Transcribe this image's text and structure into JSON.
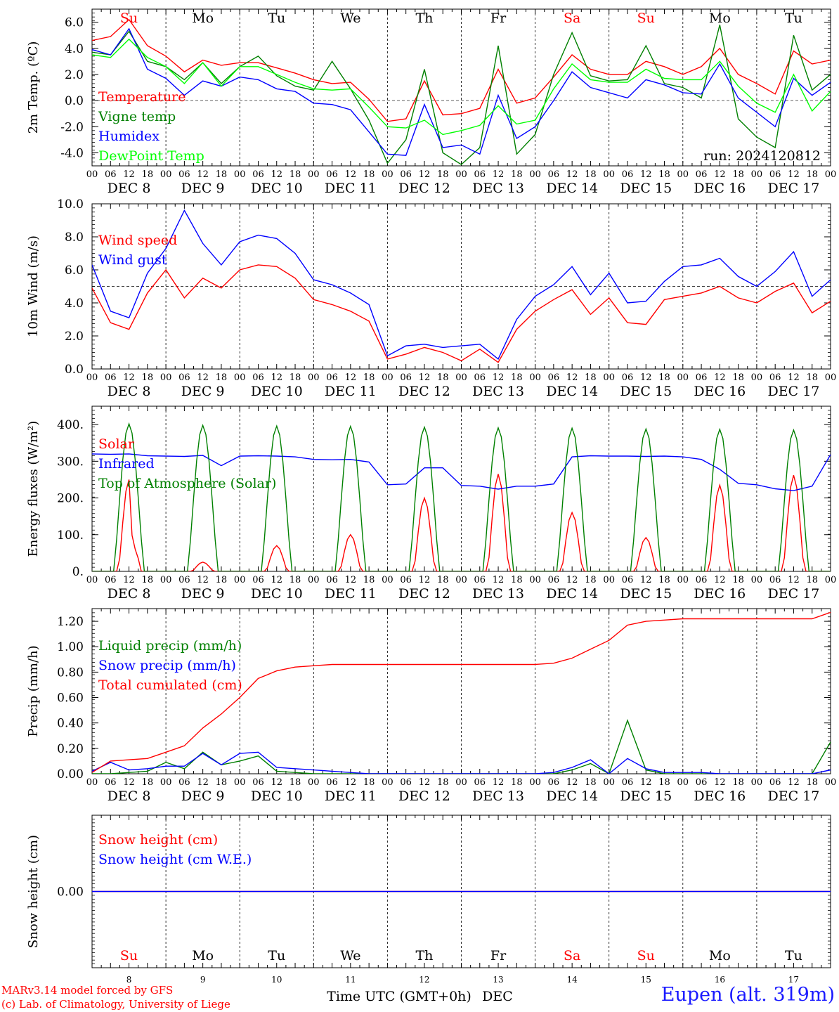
{
  "colors": {
    "red": "#ff0000",
    "green": "#008000",
    "blue": "#0000ff",
    "lightgreen": "#00ff00"
  },
  "days": [
    "Su",
    "Mo",
    "Tu",
    "We",
    "Th",
    "Fr",
    "Sa",
    "Su",
    "Mo",
    "Tu"
  ],
  "weekend_flags": [
    true,
    false,
    false,
    false,
    false,
    false,
    true,
    true,
    false,
    false
  ],
  "date_labels": [
    "DEC  8",
    "DEC  9",
    "DEC 10",
    "DEC 11",
    "DEC 12",
    "DEC 13",
    "DEC 14",
    "DEC 15",
    "DEC 16",
    "DEC 17"
  ],
  "bottom_day_numbers": [
    "8",
    "9",
    "10",
    "11",
    "12",
    "13",
    "14",
    "15",
    "16",
    "17"
  ],
  "hour_ticks": [
    "00",
    "06",
    "12",
    "18"
  ],
  "run_label": "run: 2024120812",
  "xlabel": "Time UTC (GMT+0h)",
  "xlabel_month": "DEC",
  "credit_line1": "MARv3.14 model forced by GFS",
  "credit_line2": "(c) Lab. of Climatology, University of Liege",
  "location": "Eupen (alt. 319m)",
  "chart_data": [
    {
      "type": "line",
      "ylabel": "2m Temp. (ºC)",
      "ylim": [
        -5,
        7
      ],
      "yticks": [
        -4,
        -2,
        0,
        2,
        4,
        6
      ],
      "ytick_labels": [
        "-4.0",
        "-2.0",
        "0.0",
        "2.0",
        "4.0",
        "6.0"
      ],
      "ref_line": 0,
      "x_days": [
        0,
        0.25,
        0.5,
        0.75,
        1,
        1.25,
        1.5,
        1.75,
        2,
        2.25,
        2.5,
        2.75,
        3,
        3.25,
        3.5,
        3.75,
        4,
        4.25,
        4.5,
        4.75,
        5,
        5.25,
        5.5,
        5.75,
        6,
        6.25,
        6.5,
        6.75,
        7,
        7.25,
        7.5,
        7.75,
        8,
        8.25,
        8.5,
        8.75,
        9,
        9.25,
        9.5,
        9.75,
        10
      ],
      "series": [
        {
          "name": "Temperature",
          "color": "#ff0000",
          "values": [
            4.6,
            4.9,
            6.2,
            4.2,
            3.4,
            2.2,
            3.1,
            2.7,
            2.9,
            2.9,
            2.5,
            2.1,
            1.6,
            1.3,
            1.4,
            0.1,
            -1.6,
            -1.4,
            1.5,
            -1.1,
            -1.0,
            -0.6,
            2.4,
            -0.2,
            0.2,
            1.8,
            3.5,
            2.4,
            2.0,
            2.0,
            3.0,
            2.6,
            2.0,
            2.6,
            4.0,
            2.0,
            1.3,
            0.5,
            3.8,
            2.8,
            3.1
          ]
        },
        {
          "name": "Vigne temp",
          "color": "#008000",
          "values": [
            3.7,
            3.5,
            5.3,
            3.0,
            2.6,
            1.6,
            2.9,
            1.3,
            2.6,
            3.4,
            1.9,
            1.1,
            0.8,
            3.0,
            0.9,
            -1.5,
            -4.8,
            -3.0,
            2.4,
            -4.0,
            -4.9,
            -3.6,
            4.2,
            -4.1,
            -2.6,
            2.0,
            5.2,
            1.9,
            1.5,
            1.6,
            4.2,
            1.3,
            1.0,
            0.2,
            5.8,
            -1.4,
            -2.8,
            -3.6,
            5.0,
            0.8,
            2.0
          ]
        },
        {
          "name": "Humidex",
          "color": "#0000ff",
          "values": [
            3.9,
            3.5,
            5.5,
            2.4,
            1.7,
            0.4,
            1.5,
            1.1,
            1.8,
            1.6,
            0.9,
            0.7,
            -0.2,
            -0.3,
            -0.7,
            -2.4,
            -4.1,
            -4.2,
            -0.3,
            -3.6,
            -3.4,
            -4.1,
            0.4,
            -2.9,
            -2.0,
            0.0,
            2.2,
            1.0,
            0.6,
            0.2,
            1.6,
            1.2,
            0.6,
            0.5,
            2.8,
            0.2,
            -0.9,
            -2.0,
            1.7,
            0.4,
            1.4
          ]
        },
        {
          "name": "DewPoint Temp",
          "color": "#00ff00",
          "values": [
            3.5,
            3.3,
            4.7,
            3.3,
            2.6,
            1.3,
            2.9,
            1.1,
            2.6,
            2.6,
            2.0,
            1.4,
            0.9,
            0.8,
            0.9,
            -0.5,
            -2.0,
            -2.1,
            -1.5,
            -2.6,
            -2.3,
            -1.9,
            -0.4,
            -1.8,
            -1.5,
            0.9,
            2.8,
            1.6,
            1.4,
            1.4,
            2.4,
            1.7,
            1.6,
            1.6,
            3.0,
            1.1,
            -0.2,
            -0.9,
            2.0,
            -0.8,
            0.7
          ]
        }
      ]
    },
    {
      "type": "line",
      "ylabel": "10m Wind (m/s)",
      "ylim": [
        0,
        10
      ],
      "yticks": [
        0,
        2,
        4,
        6,
        8,
        10
      ],
      "ytick_labels": [
        "0.0",
        "2.0",
        "4.0",
        "6.0",
        "8.0",
        "10.0"
      ],
      "ref_line": 5,
      "x_days": [
        0,
        0.25,
        0.5,
        0.75,
        1,
        1.25,
        1.5,
        1.75,
        2,
        2.25,
        2.5,
        2.75,
        3,
        3.25,
        3.5,
        3.75,
        4,
        4.25,
        4.5,
        4.75,
        5,
        5.25,
        5.5,
        5.75,
        6,
        6.25,
        6.5,
        6.75,
        7,
        7.25,
        7.5,
        7.75,
        8,
        8.25,
        8.5,
        8.75,
        9,
        9.25,
        9.5,
        9.75,
        10
      ],
      "series": [
        {
          "name": "Wind speed",
          "color": "#ff0000",
          "values": [
            4.9,
            2.8,
            2.4,
            4.6,
            6.0,
            4.3,
            5.5,
            4.9,
            6.0,
            6.3,
            6.2,
            5.5,
            4.2,
            3.9,
            3.5,
            2.9,
            0.6,
            0.9,
            1.3,
            1.0,
            0.5,
            1.2,
            0.4,
            2.4,
            3.5,
            4.2,
            4.8,
            3.3,
            4.3,
            2.8,
            2.7,
            4.2,
            4.4,
            4.6,
            5.0,
            4.3,
            4.0,
            4.7,
            5.2,
            3.4,
            4.1
          ]
        },
        {
          "name": "Wind gust",
          "color": "#0000ff",
          "values": [
            6.3,
            3.5,
            3.1,
            5.8,
            7.3,
            9.6,
            7.6,
            6.3,
            7.7,
            8.1,
            7.9,
            7.0,
            5.4,
            5.1,
            4.6,
            3.9,
            0.8,
            1.4,
            1.5,
            1.3,
            1.4,
            1.5,
            0.6,
            3.0,
            4.4,
            5.1,
            6.2,
            4.5,
            5.8,
            4.0,
            4.1,
            5.3,
            6.2,
            6.3,
            6.7,
            5.6,
            5.0,
            5.9,
            7.1,
            4.4,
            5.4
          ]
        }
      ]
    },
    {
      "type": "line",
      "ylabel": "Energy fluxes (W/m²)",
      "ylim": [
        0,
        450
      ],
      "yticks": [
        0,
        100,
        200,
        300,
        400
      ],
      "ytick_labels": [
        "0.",
        "100.",
        "200.",
        "300.",
        "400."
      ],
      "ref_line": null,
      "series": [
        {
          "name": "Solar",
          "color": "#ff0000",
          "peaks": [
            {
              "day": 0,
              "value": 250,
              "shape": "double"
            },
            {
              "day": 1,
              "value": 25
            },
            {
              "day": 2,
              "value": 70
            },
            {
              "day": 3,
              "value": 100
            },
            {
              "day": 4,
              "value": 200
            },
            {
              "day": 5,
              "value": 265
            },
            {
              "day": 6,
              "value": 160
            },
            {
              "day": 7,
              "value": 92
            },
            {
              "day": 8,
              "value": 235
            },
            {
              "day": 9,
              "value": 262
            }
          ]
        },
        {
          "name": "Infrared",
          "color": "#0000ff",
          "x_days": [
            0,
            0.25,
            0.5,
            0.75,
            1,
            1.25,
            1.5,
            1.75,
            2,
            2.25,
            2.5,
            2.75,
            3,
            3.25,
            3.5,
            3.75,
            4,
            4.25,
            4.5,
            4.75,
            5,
            5.25,
            5.5,
            5.75,
            6,
            6.25,
            6.5,
            6.75,
            7,
            7.25,
            7.5,
            7.75,
            8,
            8.25,
            8.5,
            8.75,
            9,
            9.25,
            9.5,
            9.75,
            10
          ],
          "values": [
            320,
            319,
            320,
            315,
            314,
            313,
            316,
            288,
            314,
            315,
            314,
            312,
            305,
            304,
            305,
            298,
            236,
            238,
            282,
            282,
            234,
            232,
            224,
            232,
            232,
            238,
            312,
            315,
            314,
            314,
            313,
            314,
            312,
            305,
            278,
            240,
            236,
            225,
            220,
            232,
            318
          ]
        },
        {
          "name": "Top of Atmosphere (Solar)",
          "color": "#008000",
          "peaks": [
            {
              "day": 0,
              "value": 402
            },
            {
              "day": 1,
              "value": 398
            },
            {
              "day": 2,
              "value": 396
            },
            {
              "day": 3,
              "value": 395
            },
            {
              "day": 4,
              "value": 393
            },
            {
              "day": 5,
              "value": 391
            },
            {
              "day": 6,
              "value": 390
            },
            {
              "day": 7,
              "value": 388
            },
            {
              "day": 8,
              "value": 387
            },
            {
              "day": 9,
              "value": 385
            }
          ]
        }
      ]
    },
    {
      "type": "line",
      "ylabel": "Precip (mm/h)",
      "ylim": [
        0,
        1.3
      ],
      "yticks": [
        0,
        0.2,
        0.4,
        0.6,
        0.8,
        1.0,
        1.2
      ],
      "ytick_labels": [
        "0.00",
        "0.20",
        "0.40",
        "0.60",
        "0.80",
        "1.00",
        "1.20"
      ],
      "ref_line": null,
      "x_days": [
        0,
        0.25,
        0.5,
        0.75,
        1,
        1.25,
        1.5,
        1.75,
        2,
        2.25,
        2.5,
        2.75,
        3,
        3.25,
        3.5,
        3.75,
        4,
        4.25,
        4.5,
        4.75,
        5,
        5.25,
        5.5,
        5.75,
        6,
        6.25,
        6.5,
        6.75,
        7,
        7.25,
        7.5,
        7.75,
        8,
        8.25,
        8.5,
        8.75,
        9,
        9.25,
        9.5,
        9.75,
        10
      ],
      "series": [
        {
          "name": "Liquid precip (mm/h)",
          "color": "#008000",
          "values": [
            0.0,
            0.0,
            0.01,
            0.02,
            0.09,
            0.04,
            0.17,
            0.07,
            0.1,
            0.14,
            0.02,
            0.01,
            0.0,
            0.0,
            0.0,
            0.0,
            0.0,
            0.0,
            0.0,
            0.0,
            0.0,
            0.0,
            0.0,
            0.0,
            0.0,
            0.0,
            0.03,
            0.08,
            0.0,
            0.42,
            0.03,
            0.0,
            0.0,
            0.0,
            0.0,
            0.0,
            0.0,
            0.0,
            0.0,
            0.0,
            0.25
          ]
        },
        {
          "name": "Snow precip (mm/h)",
          "color": "#0000ff",
          "values": [
            0.02,
            0.09,
            0.03,
            0.04,
            0.06,
            0.06,
            0.16,
            0.07,
            0.16,
            0.17,
            0.05,
            0.04,
            0.03,
            0.02,
            0.01,
            0.0,
            0.0,
            0.0,
            0.0,
            0.0,
            0.0,
            0.0,
            0.0,
            0.0,
            0.0,
            0.01,
            0.05,
            0.11,
            0.0,
            0.12,
            0.04,
            0.01,
            0.01,
            0.01,
            0.0,
            0.0,
            0.0,
            0.0,
            0.0,
            0.0,
            0.03
          ]
        },
        {
          "name": "Total cumulated (cm)",
          "color": "#ff0000",
          "values": [
            0.01,
            0.1,
            0.11,
            0.12,
            0.17,
            0.22,
            0.36,
            0.47,
            0.6,
            0.75,
            0.81,
            0.84,
            0.85,
            0.86,
            0.86,
            0.86,
            0.86,
            0.86,
            0.86,
            0.86,
            0.86,
            0.86,
            0.86,
            0.86,
            0.86,
            0.87,
            0.91,
            0.98,
            1.05,
            1.17,
            1.2,
            1.21,
            1.22,
            1.22,
            1.22,
            1.22,
            1.22,
            1.22,
            1.22,
            1.22,
            1.27
          ]
        }
      ]
    },
    {
      "type": "line",
      "ylabel": "Snow height (cm)",
      "ylim": [
        -1,
        1
      ],
      "yticks": [
        0
      ],
      "ytick_labels": [
        "0.00"
      ],
      "ref_line": null,
      "x_days": [
        0,
        10
      ],
      "series": [
        {
          "name": "Snow height (cm)",
          "color": "#ff0000",
          "values": [
            0,
            0
          ]
        },
        {
          "name": "Snow height (cm W.E.)",
          "color": "#0000ff",
          "values": [
            0,
            0
          ]
        }
      ]
    }
  ]
}
